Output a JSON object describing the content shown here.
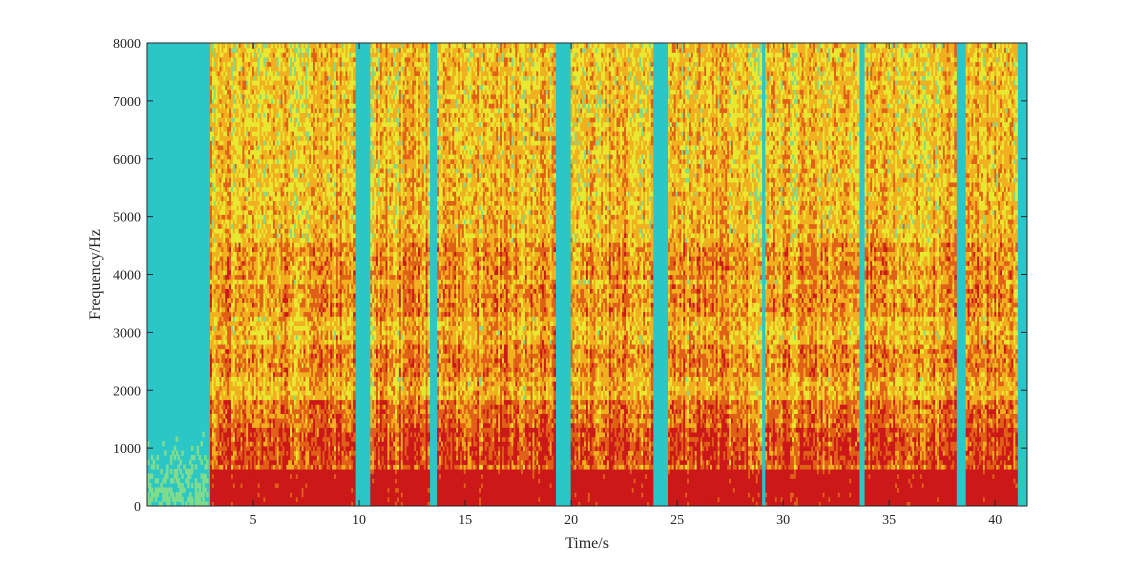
{
  "chart_data": {
    "type": "heatmap",
    "subtype": "spectrogram",
    "title": "",
    "xlabel": "Time/s",
    "ylabel": "Frequency/Hz",
    "xlim": [
      0,
      41.5
    ],
    "ylim": [
      0,
      8000
    ],
    "xticks": [
      5,
      10,
      15,
      20,
      25,
      30,
      35,
      40
    ],
    "xtick_labels": [
      "5",
      "10",
      "15",
      "20",
      "25",
      "30",
      "35",
      "40"
    ],
    "yticks": [
      0,
      1000,
      2000,
      3000,
      4000,
      5000,
      6000,
      7000,
      8000
    ],
    "ytick_labels": [
      "0",
      "1000",
      "2000",
      "3000",
      "4000",
      "5000",
      "6000",
      "7000",
      "8000"
    ],
    "grid": false,
    "colormap": [
      "#2bc6c6",
      "#7fdc8c",
      "#e8e830",
      "#f0b020",
      "#e06018",
      "#cc1818"
    ],
    "background_level_color": "#2bc6c6",
    "voiced_segments_s": [
      [
        2.9,
        9.8
      ],
      [
        10.5,
        13.3
      ],
      [
        13.6,
        19.2
      ],
      [
        19.9,
        23.8
      ],
      [
        24.5,
        28.9
      ],
      [
        29.1,
        33.5
      ],
      [
        33.8,
        38.1
      ],
      [
        38.6,
        41.0
      ]
    ],
    "high_energy_band_hz": [
      0,
      600
    ],
    "formant_bands_hz": [
      1000,
      2500,
      3500,
      4200
    ]
  }
}
